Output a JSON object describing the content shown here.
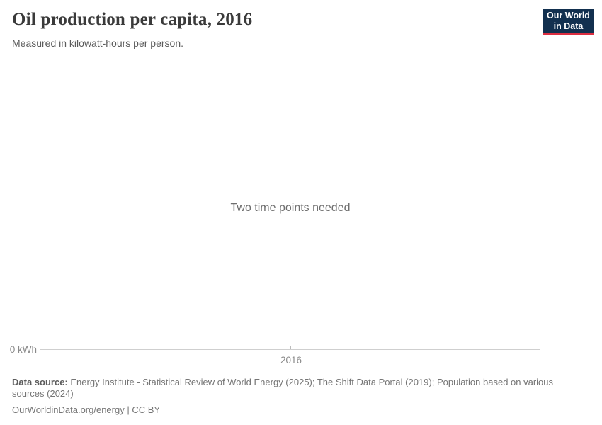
{
  "header": {
    "title": "Oil production per capita, 2016",
    "subtitle": "Measured in kilowatt-hours per person.",
    "logo": {
      "line1": "Our World",
      "line2": "in Data"
    }
  },
  "chart_data": {
    "type": "line",
    "title": "Oil production per capita, 2016",
    "subtitle": "Measured in kilowatt-hours per person.",
    "empty_state_message": "Two time points needed",
    "series": [],
    "x": [],
    "x_axis": {
      "ticks": [
        "2016"
      ]
    },
    "y_axis": {
      "ticks": [
        "0 kWh"
      ],
      "unit": "kWh"
    },
    "grid": false,
    "legend": "none"
  },
  "axis": {
    "y_zero_label": "0 kWh",
    "x_tick_label": "2016"
  },
  "footer": {
    "datasource_label": "Data source:",
    "datasource_text": " Energy Institute - Statistical Review of World Energy (2025); The Shift Data Portal (2019); Population based on various sources (2024)",
    "url": "OurWorldinData.org/energy",
    "separator": " | ",
    "license": "CC BY"
  },
  "colors": {
    "logo_navy": "#12304f",
    "logo_red": "#dc2e41",
    "axis_line": "#cfcfcf",
    "text_muted": "#8a8a8a",
    "footer_text": "#757575"
  }
}
